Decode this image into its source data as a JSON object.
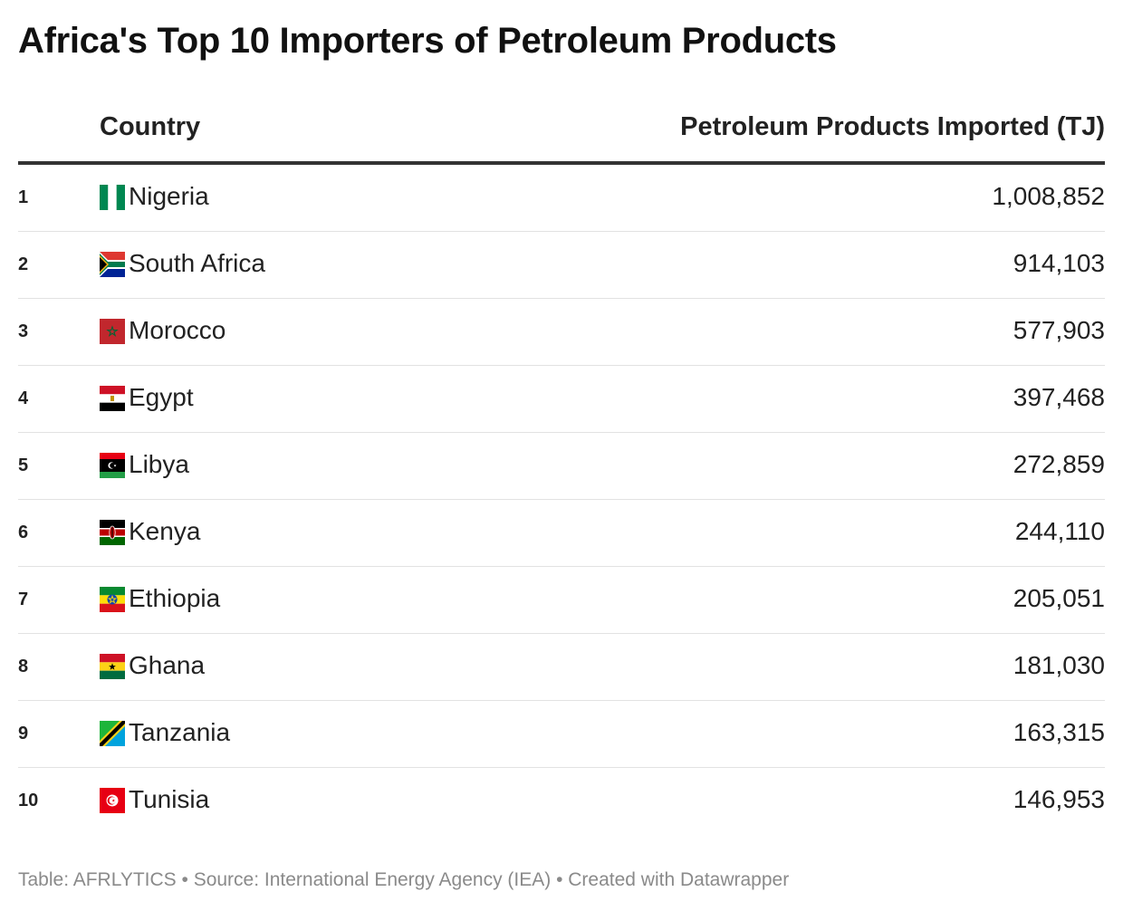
{
  "title": "Africa's Top 10 Importers of Petroleum Products",
  "columns": {
    "country": "Country",
    "value": "Petroleum Products Imported (TJ)"
  },
  "rows": [
    {
      "rank": "1",
      "country": "Nigeria",
      "value": "1,008,852",
      "flag": "nigeria-flag-icon"
    },
    {
      "rank": "2",
      "country": "South Africa",
      "value": "914,103",
      "flag": "south-africa-flag-icon"
    },
    {
      "rank": "3",
      "country": "Morocco",
      "value": "577,903",
      "flag": "morocco-flag-icon"
    },
    {
      "rank": "4",
      "country": "Egypt",
      "value": "397,468",
      "flag": "egypt-flag-icon"
    },
    {
      "rank": "5",
      "country": "Libya",
      "value": "272,859",
      "flag": "libya-flag-icon"
    },
    {
      "rank": "6",
      "country": "Kenya",
      "value": "244,110",
      "flag": "kenya-flag-icon"
    },
    {
      "rank": "7",
      "country": "Ethiopia",
      "value": "205,051",
      "flag": "ethiopia-flag-icon"
    },
    {
      "rank": "8",
      "country": "Ghana",
      "value": "181,030",
      "flag": "ghana-flag-icon"
    },
    {
      "rank": "9",
      "country": "Tanzania",
      "value": "163,315",
      "flag": "tanzania-flag-icon"
    },
    {
      "rank": "10",
      "country": "Tunisia",
      "value": "146,953",
      "flag": "tunisia-flag-icon"
    }
  ],
  "footer": "Table: AFRLYTICS  • Source: International Energy Agency (IEA) • Created with Datawrapper",
  "chart_data": {
    "type": "table",
    "title": "Africa's Top 10 Importers of Petroleum Products",
    "columns": [
      "Country",
      "Petroleum Products Imported (TJ)"
    ],
    "categories": [
      "Nigeria",
      "South Africa",
      "Morocco",
      "Egypt",
      "Libya",
      "Kenya",
      "Ethiopia",
      "Ghana",
      "Tanzania",
      "Tunisia"
    ],
    "values": [
      1008852,
      914103,
      577903,
      397468,
      272859,
      244110,
      205051,
      181030,
      163315,
      146953
    ]
  }
}
